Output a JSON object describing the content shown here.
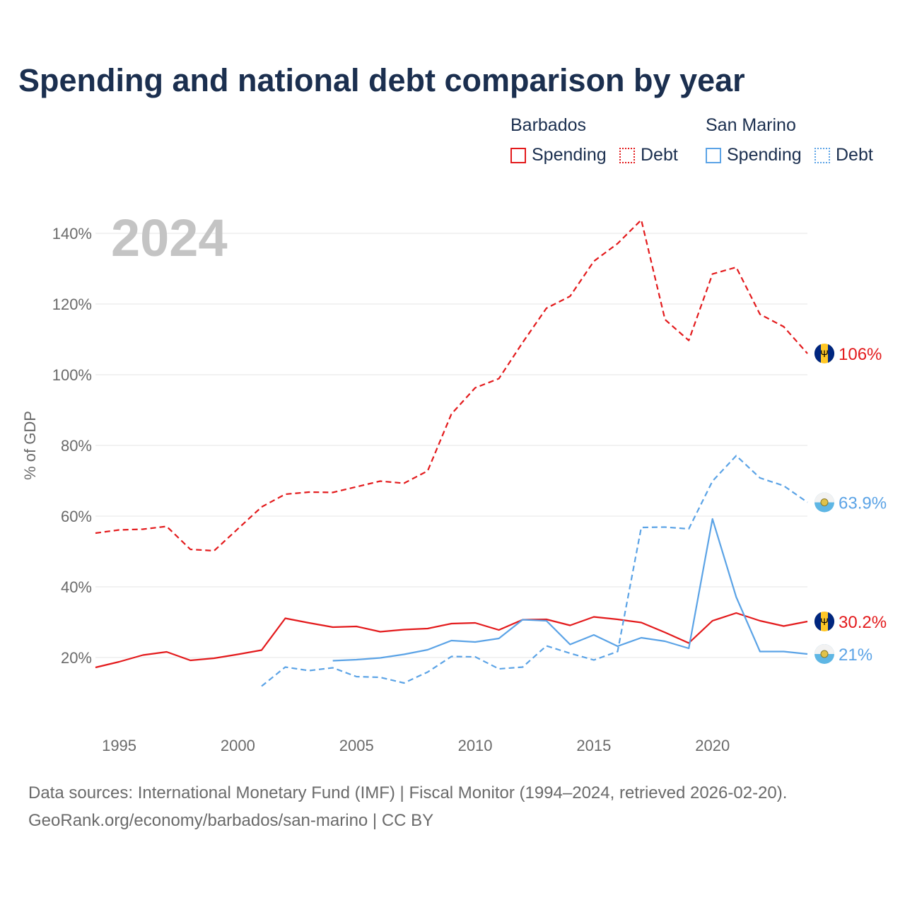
{
  "title": "Spending and national debt comparison by year",
  "legend": {
    "groups": [
      {
        "name": "Barbados",
        "color": "#e31a1c",
        "items": [
          "Spending",
          "Debt"
        ]
      },
      {
        "name": "San Marino",
        "color": "#5ba3e6",
        "items": [
          "Spending",
          "Debt"
        ]
      }
    ]
  },
  "year_label": "2024",
  "end_labels": {
    "barbados_debt": "106%",
    "san_marino_debt": "63.9%",
    "barbados_spending": "30.2%",
    "san_marino_spending": "21%"
  },
  "icons": {
    "barbados": "barbados-flag-icon",
    "san_marino": "san-marino-flag-icon"
  },
  "chart_data": {
    "type": "line",
    "title": "Spending and national debt comparison by year",
    "xlabel": "",
    "ylabel": "% of GDP",
    "xlim": [
      1994,
      2024
    ],
    "ylim": [
      0,
      145
    ],
    "x_ticks": [
      1995,
      2000,
      2005,
      2010,
      2015,
      2020
    ],
    "y_ticks": [
      20,
      40,
      60,
      80,
      100,
      120,
      140
    ],
    "y_tick_labels": [
      "20%",
      "40%",
      "60%",
      "80%",
      "100%",
      "120%",
      "140%"
    ],
    "grid": true,
    "legend_position": "top-right",
    "series": [
      {
        "name": "Barbados Spending",
        "country": "Barbados",
        "measure": "Spending",
        "color": "#e31a1c",
        "dashed": false,
        "x": [
          1994,
          1995,
          1996,
          1997,
          1998,
          1999,
          2000,
          2001,
          2002,
          2003,
          2004,
          2005,
          2006,
          2007,
          2008,
          2009,
          2010,
          2011,
          2012,
          2013,
          2014,
          2015,
          2016,
          2017,
          2018,
          2019,
          2020,
          2021,
          2022,
          2023,
          2024
        ],
        "values": [
          17.2,
          18.8,
          20.7,
          21.6,
          19.2,
          19.8,
          20.9,
          22.1,
          31.1,
          29.8,
          28.6,
          28.8,
          27.3,
          27.9,
          28.2,
          29.6,
          29.8,
          27.8,
          30.7,
          30.8,
          29.1,
          31.5,
          30.8,
          29.9,
          27.1,
          24.1,
          30.4,
          32.6,
          30.4,
          28.9,
          30.2
        ]
      },
      {
        "name": "Barbados Debt",
        "country": "Barbados",
        "measure": "Debt",
        "color": "#e31a1c",
        "dashed": true,
        "x": [
          1994,
          1995,
          1996,
          1997,
          1998,
          1999,
          2000,
          2001,
          2002,
          2003,
          2004,
          2005,
          2006,
          2007,
          2008,
          2009,
          2010,
          2011,
          2012,
          2013,
          2014,
          2015,
          2016,
          2017,
          2018,
          2019,
          2020,
          2021,
          2022,
          2023,
          2024
        ],
        "values": [
          55.2,
          56.1,
          56.3,
          57.1,
          50.6,
          50.2,
          56.4,
          62.6,
          66.2,
          66.8,
          66.7,
          68.3,
          69.9,
          69.3,
          72.8,
          88.9,
          96.3,
          98.9,
          109.1,
          118.8,
          122.2,
          132.1,
          137.1,
          143.8,
          115.6,
          109.7,
          128.5,
          130.4,
          117.1,
          113.6,
          106.0
        ]
      },
      {
        "name": "San Marino Spending",
        "country": "San Marino",
        "measure": "Spending",
        "color": "#5ba3e6",
        "dashed": false,
        "x": [
          2004,
          2005,
          2006,
          2007,
          2008,
          2009,
          2010,
          2011,
          2012,
          2013,
          2014,
          2015,
          2016,
          2017,
          2018,
          2019,
          2020,
          2021,
          2022,
          2023,
          2024
        ],
        "values": [
          19.1,
          19.4,
          19.9,
          20.9,
          22.2,
          24.8,
          24.4,
          25.4,
          30.7,
          30.4,
          23.7,
          26.4,
          23.2,
          25.6,
          24.6,
          22.6,
          59.2,
          37.1,
          21.7,
          21.7,
          21.0
        ]
      },
      {
        "name": "San Marino Debt",
        "country": "San Marino",
        "measure": "Debt",
        "color": "#5ba3e6",
        "dashed": true,
        "x": [
          2001,
          2002,
          2003,
          2004,
          2005,
          2006,
          2007,
          2008,
          2009,
          2010,
          2011,
          2012,
          2013,
          2014,
          2015,
          2016,
          2017,
          2018,
          2019,
          2020,
          2021,
          2022,
          2023,
          2024
        ],
        "values": [
          11.9,
          17.3,
          16.3,
          17.1,
          14.6,
          14.4,
          12.8,
          15.9,
          20.3,
          20.2,
          16.8,
          17.3,
          23.3,
          21.2,
          19.3,
          21.7,
          56.8,
          56.9,
          56.4,
          69.9,
          77.1,
          70.8,
          68.6,
          63.9
        ]
      }
    ]
  },
  "sources": {
    "line1": "Data sources: International Monetary Fund (IMF) | Fiscal Monitor (1994–2024, retrieved 2026-02-20).",
    "line2": "GeoRank.org/economy/barbados/san-marino | CC BY"
  }
}
